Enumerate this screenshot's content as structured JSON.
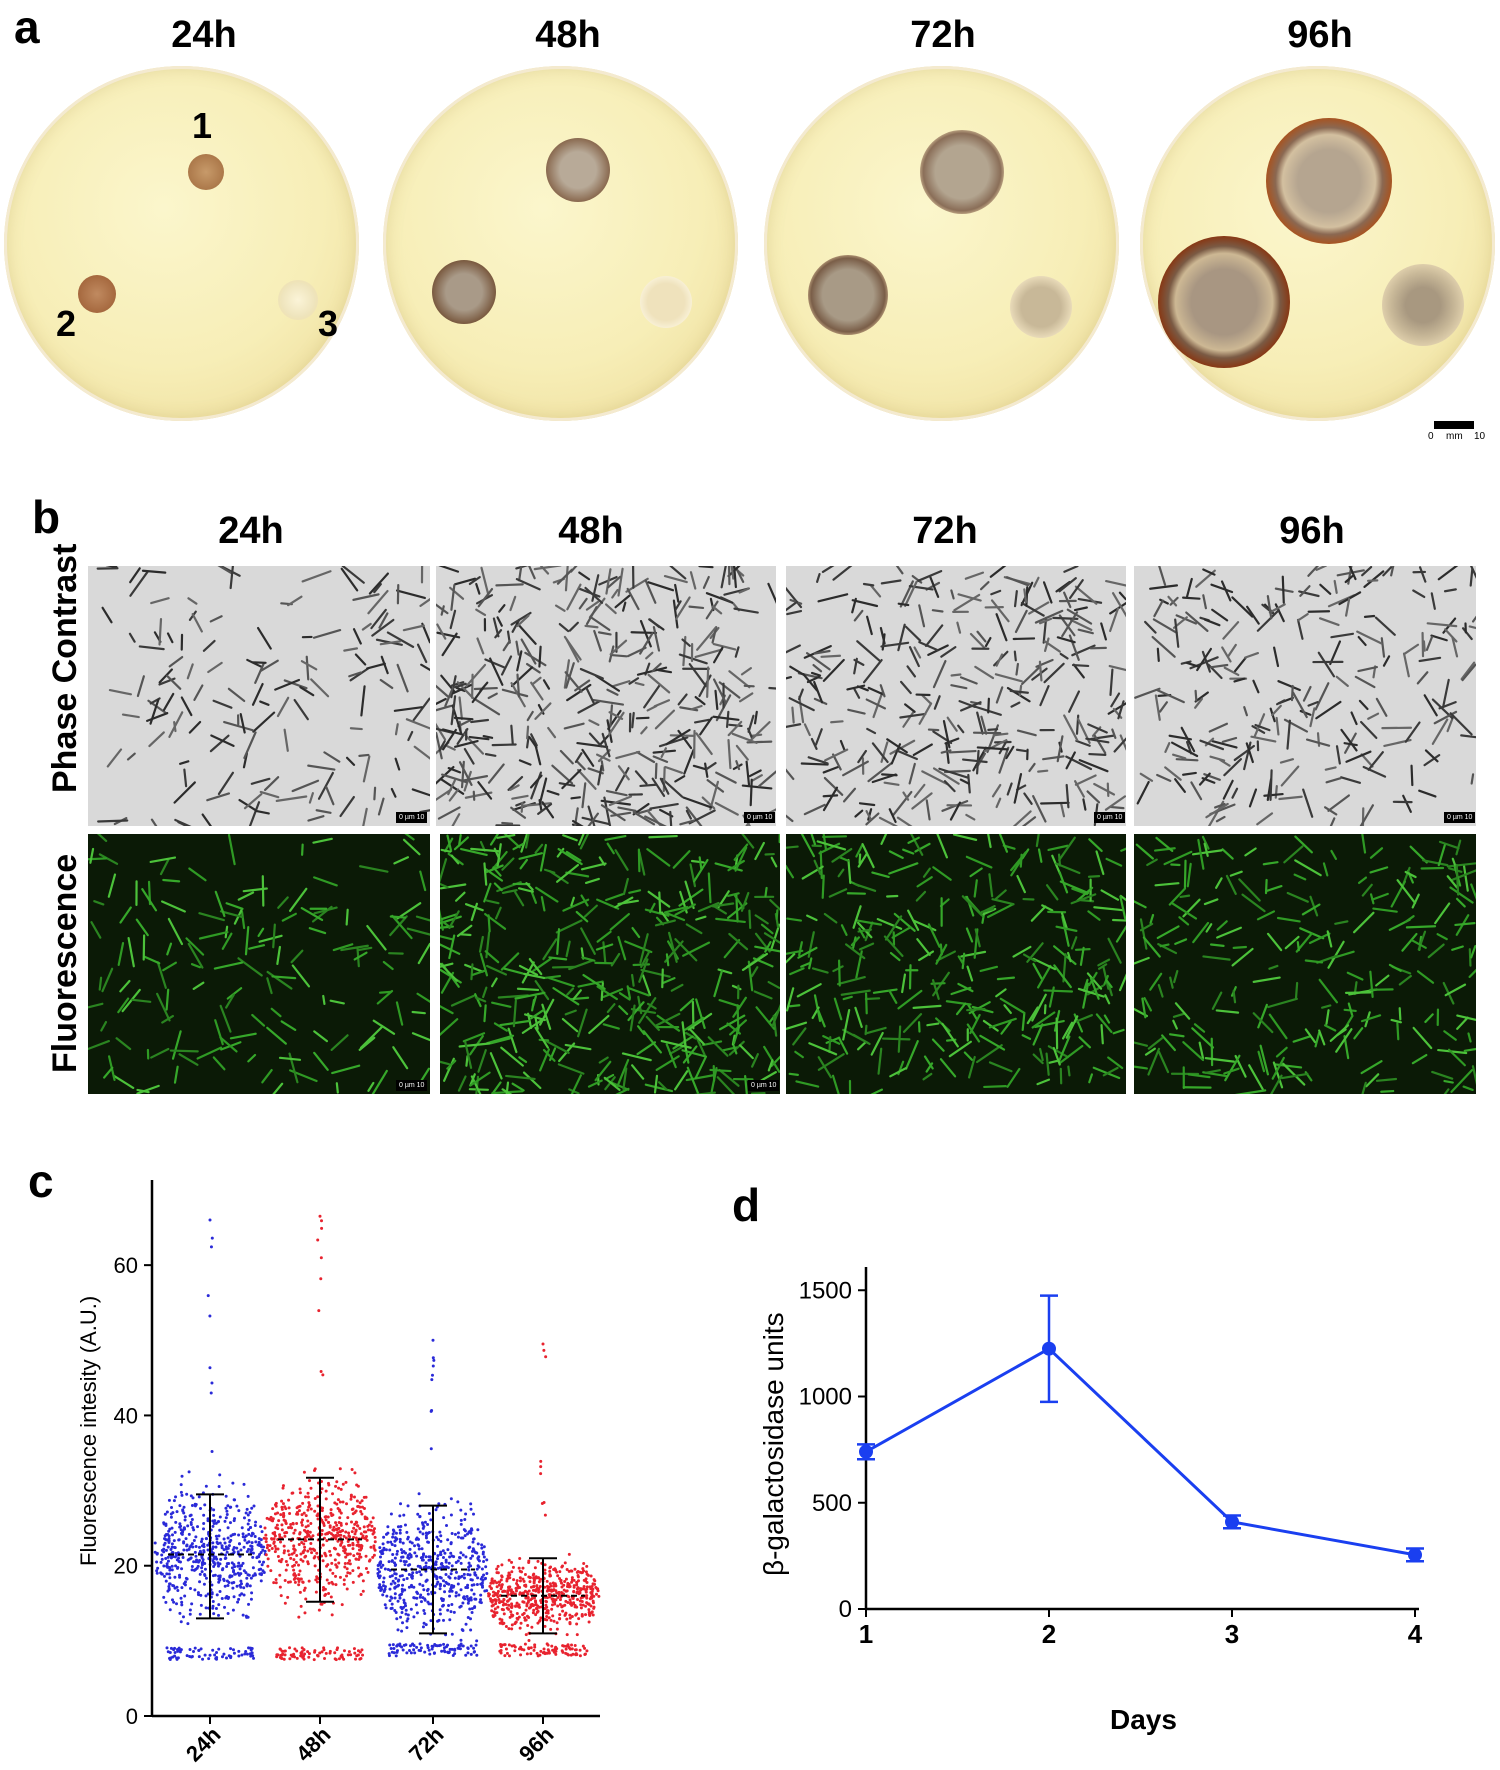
{
  "panels": {
    "a": {
      "letter": "a",
      "times": [
        "24h",
        "48h",
        "72h",
        "96h"
      ],
      "colony_labels": [
        "1",
        "2",
        "3"
      ],
      "scale": {
        "left": "0",
        "unit": "mm",
        "right": "10"
      }
    },
    "b": {
      "letter": "b",
      "times": [
        "24h",
        "48h",
        "72h",
        "96h"
      ],
      "rows": [
        "Phase Contrast",
        "Fluorescence"
      ],
      "scale_text": "0 µm 10"
    },
    "c": {
      "letter": "c",
      "ylabel": "Fluorescence intesity (A.U.)",
      "colors": {
        "blue": "#2a2ad8",
        "red": "#e8232f"
      }
    },
    "d": {
      "letter": "d",
      "ylabel": "β-galactosidase units",
      "xlabel": "Days",
      "color": "#1a3ff0"
    }
  },
  "chart_data": [
    {
      "type": "scatter",
      "panel": "c",
      "categories": [
        "24h",
        "48h",
        "72h",
        "96h"
      ],
      "ylabel": "Fluorescence intesity (A.U.)",
      "ylim": [
        0,
        70
      ],
      "yticks": [
        0,
        20,
        40,
        60
      ],
      "series": [
        {
          "category": "24h",
          "color": "#2a2ad8",
          "mean": 21.5,
          "sd_low": 13,
          "sd_high": 29.5,
          "min": 7.5,
          "max": 66
        },
        {
          "category": "48h",
          "color": "#e8232f",
          "mean": 23.5,
          "sd_low": 15.2,
          "sd_high": 31.7,
          "min": 7.5,
          "max": 66.5
        },
        {
          "category": "72h",
          "color": "#2a2ad8",
          "mean": 19.5,
          "sd_low": 11,
          "sd_high": 28,
          "min": 8,
          "max": 50
        },
        {
          "category": "96h",
          "color": "#e8232f",
          "mean": 16,
          "sd_low": 11,
          "sd_high": 21,
          "min": 8,
          "max": 49.5
        }
      ]
    },
    {
      "type": "line",
      "panel": "d",
      "xlabel": "Days",
      "ylabel": "β-galactosidase units",
      "x": [
        1,
        2,
        3,
        4
      ],
      "y": [
        740,
        1225,
        410,
        255
      ],
      "error": [
        35,
        250,
        30,
        30
      ],
      "ylim": [
        0,
        1600
      ],
      "yticks": [
        0,
        500,
        1000,
        1500
      ],
      "xticks": [
        1,
        2,
        3,
        4
      ]
    }
  ]
}
